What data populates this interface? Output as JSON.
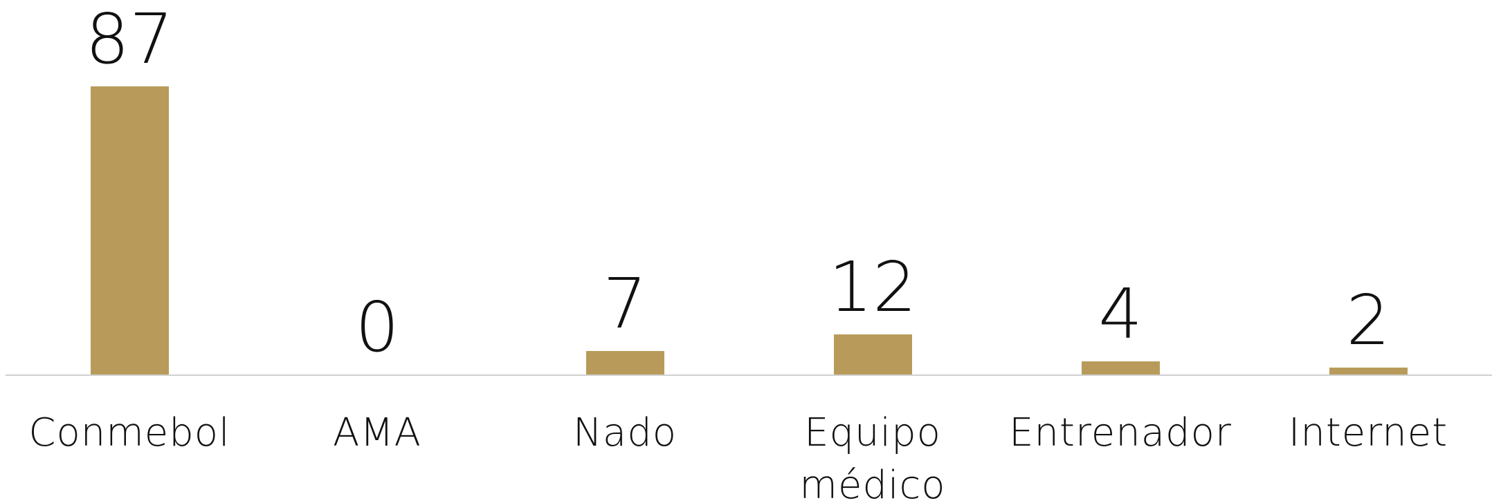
{
  "chart_data": {
    "type": "bar",
    "categories": [
      "Conmebol",
      "AMA",
      "Nado",
      "Equipo médico",
      "Entrenador",
      "Internet"
    ],
    "values": [
      87,
      0,
      7,
      12,
      4,
      2
    ],
    "color": "#b89b5b"
  }
}
